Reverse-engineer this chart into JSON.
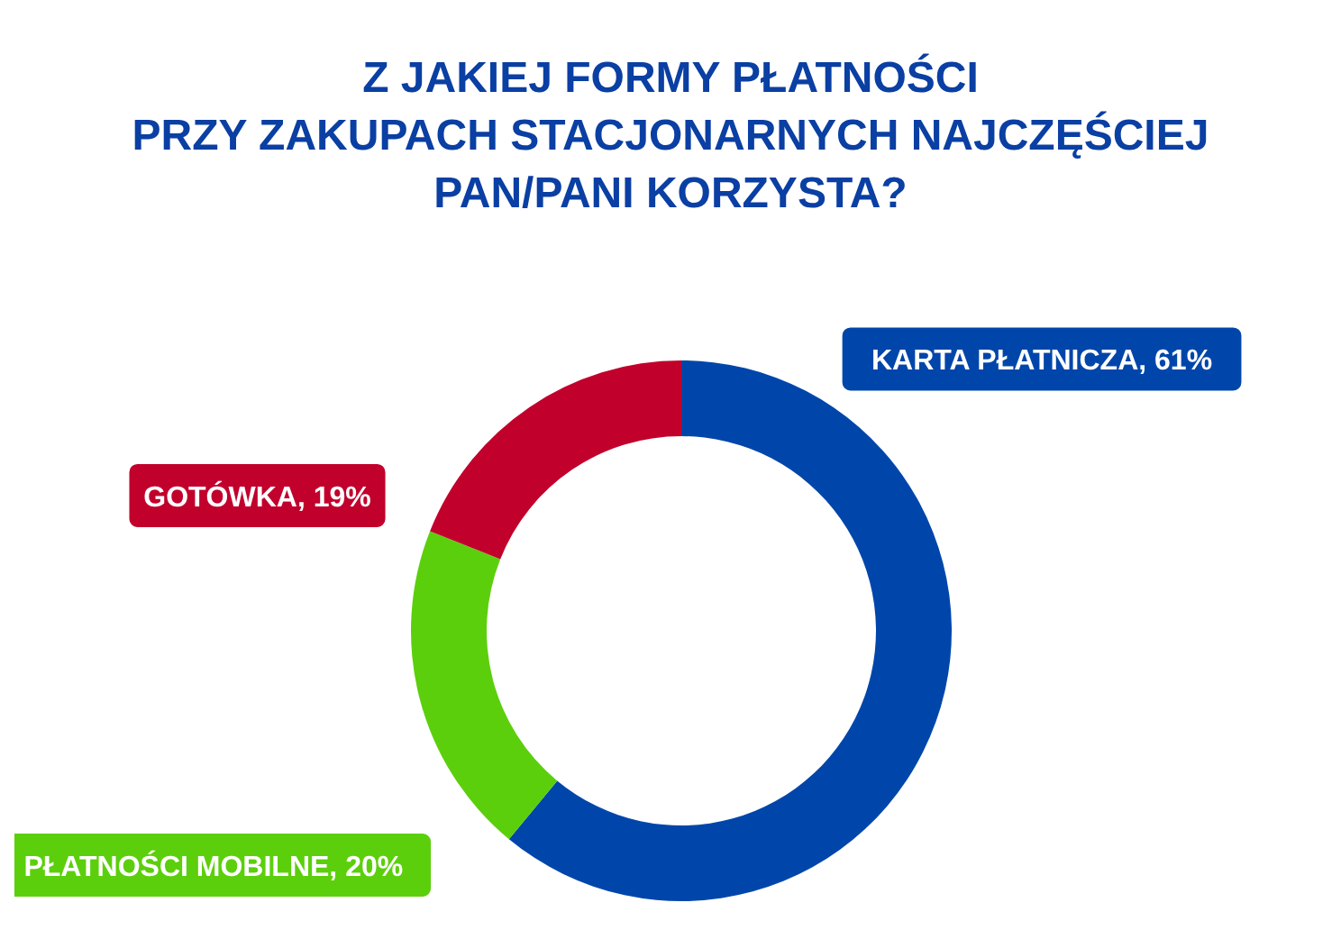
{
  "chart_data": {
    "type": "donut",
    "title": "Z JAKIEJ FORMY PŁATNOŚCI\nPRZY ZAKUPACH STACJONARNYCH NAJCZĘŚCIEJ\nPAN/PANI KORZYSTA?",
    "categories": [
      "KARTA PŁATNICZA",
      "PŁATNOŚCI MOBILNE",
      "GOTÓWKA"
    ],
    "values": [
      61,
      20,
      19
    ],
    "value_labels": [
      "61%",
      "20%",
      "19%"
    ],
    "colors": [
      "#0046aa",
      "#5ccf0c",
      "#c1002c"
    ],
    "legend": false
  }
}
